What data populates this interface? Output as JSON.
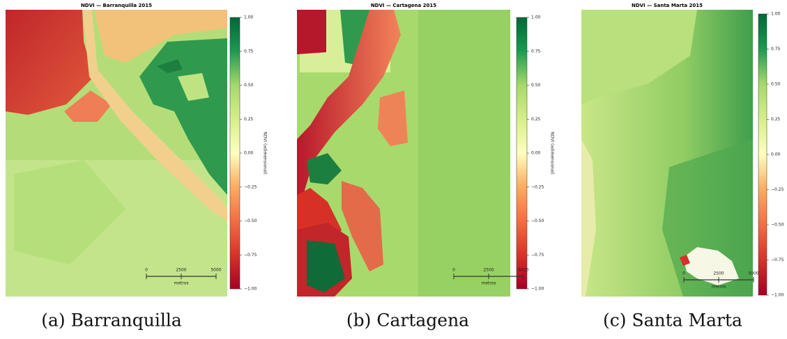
{
  "figure": {
    "panels": [
      {
        "title": "NDVI — Barranquilla 2015",
        "colorbar": {
          "label": "NDVI (adimensional)",
          "ticks": [
            "1.00",
            "0.75",
            "0.50",
            "0.25",
            "0.00",
            "−0.25",
            "−0.50",
            "−0.75",
            "−1.00"
          ]
        },
        "scale_bar": {
          "ticks": [
            "0",
            "2500",
            "5000"
          ],
          "unit": "metros"
        },
        "caption": "(a) Barranquilla"
      },
      {
        "title": "NDVI — Cartagena 2015",
        "colorbar": {
          "label": "NDVI (adimensional)",
          "ticks": [
            "1.00",
            "0.75",
            "0.50",
            "0.25",
            "0.00",
            "−0.25",
            "−0.50",
            "−0.75",
            "−1.00"
          ]
        },
        "scale_bar": {
          "ticks": [
            "0",
            "2500",
            "5000"
          ],
          "unit": "metros"
        },
        "caption": "(b) Cartagena"
      },
      {
        "title": "NDVI — Santa Marta 2015",
        "colorbar": {
          "ticks": [
            "1.00",
            "0.75",
            "0.50",
            "0.25",
            "0.00",
            "−0.25",
            "−0.50",
            "−0.75",
            "−1.00"
          ]
        },
        "scale_bar": {
          "ticks": [
            "0",
            "2500",
            "5000"
          ],
          "unit": "metros"
        },
        "caption": "(c) Santa Marta"
      }
    ]
  }
}
